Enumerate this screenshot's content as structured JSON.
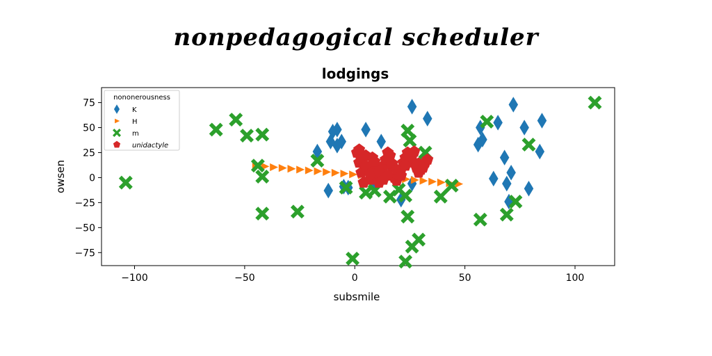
{
  "suptitle": "nonpedagogical scheduler",
  "chart_data": {
    "type": "scatter",
    "title": "lodgings",
    "xlabel": "subsmile",
    "ylabel": "owsen",
    "xlim": [
      -115,
      118
    ],
    "ylim": [
      -88,
      90
    ],
    "xticks": [
      -100,
      -50,
      0,
      50,
      100
    ],
    "yticks": [
      75,
      50,
      25,
      0,
      -25,
      -50,
      -75
    ],
    "xtick_labels": [
      "−100",
      "−50",
      "0",
      "50",
      "100"
    ],
    "ytick_labels": [
      "75",
      "50",
      "25",
      "0",
      "−25",
      "−50",
      "−75"
    ],
    "grid": false,
    "legend": {
      "title": "nononerousness",
      "placement": "top-left"
    },
    "series": [
      {
        "name": "K",
        "marker": "diamond",
        "color": "#1f77b4",
        "x": [
          -17,
          -12,
          -10,
          -11,
          -8,
          -8,
          -6,
          -5,
          -3,
          5,
          9,
          12,
          13,
          21,
          26,
          26,
          33,
          56,
          57,
          58,
          63,
          65,
          68,
          69,
          70,
          71,
          72,
          77,
          79,
          84,
          85
        ],
        "y": [
          26,
          -13,
          46,
          36,
          32,
          48,
          36,
          -9,
          -10,
          48,
          -8,
          36,
          9,
          -22,
          71,
          -6,
          59,
          33,
          50,
          38,
          -1,
          55,
          20,
          -6,
          -24,
          5,
          73,
          50,
          -11,
          26,
          57
        ]
      },
      {
        "name": "H",
        "marker": "triangle-right",
        "color": "#ff7f0e",
        "x": [
          -45,
          -41,
          -37,
          -33,
          -29,
          -25,
          -21,
          -17,
          -13,
          -9,
          -5,
          -1,
          3,
          7,
          11,
          15,
          19,
          23,
          27,
          31,
          35,
          39,
          43,
          47
        ],
        "y": [
          12,
          11.2,
          10.4,
          9.6,
          8.8,
          8,
          7.2,
          6.4,
          5.6,
          4.8,
          4,
          3.2,
          2.4,
          1.6,
          0.8,
          0,
          -0.8,
          -1.6,
          -2.4,
          -3.2,
          -4,
          -4.8,
          -5.6,
          -6.4
        ]
      },
      {
        "name": "m",
        "marker": "x",
        "color": "#2ca02c",
        "x": [
          -104,
          -63,
          -54,
          -49,
          -42,
          -42,
          -44,
          -42,
          -26,
          -17,
          -4,
          -1,
          5,
          9,
          16,
          20,
          23,
          23,
          24,
          24,
          25,
          26,
          29,
          32,
          39,
          44,
          57,
          60,
          69,
          73,
          79,
          109
        ],
        "y": [
          -5,
          48,
          58,
          42,
          43,
          1,
          12,
          -36,
          -34,
          17,
          -10,
          -81,
          -15,
          -13,
          -19,
          -12,
          -84,
          -18,
          -39,
          47,
          37,
          -69,
          -62,
          25,
          -19,
          -8,
          -42,
          56,
          -37,
          -24,
          33,
          75
        ]
      },
      {
        "name": "unidactyle",
        "marker": "pentagon",
        "color": "#d62728",
        "x": [
          1,
          2,
          3,
          4,
          5,
          6,
          7,
          8,
          9,
          10,
          11,
          12,
          13,
          14,
          15,
          16,
          17,
          18,
          19,
          20,
          21,
          22,
          23,
          24,
          25,
          26,
          27,
          28,
          29,
          30,
          31,
          32,
          33,
          2,
          3,
          5,
          7,
          9,
          11,
          13,
          15,
          17,
          19,
          21,
          23,
          25,
          27,
          29,
          31
        ],
        "y": [
          25,
          15,
          5,
          -5,
          22,
          8,
          -2,
          20,
          10,
          0,
          -5,
          5,
          12,
          18,
          25,
          22,
          10,
          0,
          -3,
          3,
          8,
          15,
          20,
          25,
          18,
          22,
          15,
          10,
          5,
          8,
          12,
          15,
          18,
          28,
          18,
          12,
          4,
          16,
          6,
          -2,
          2,
          14,
          8,
          2,
          12,
          22,
          26,
          14,
          10
        ]
      }
    ]
  }
}
